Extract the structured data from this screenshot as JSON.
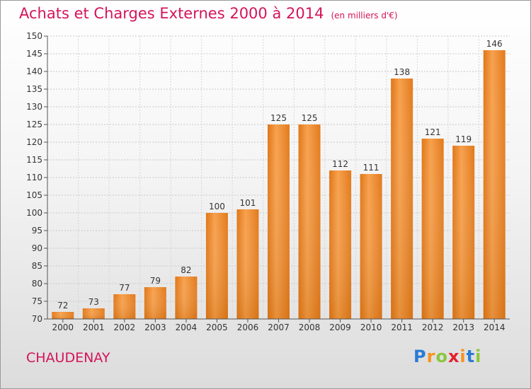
{
  "title": "Achats et Charges Externes 2000 à 2014",
  "subtitle": "(en milliers d'€)",
  "place": "CHAUDENAY",
  "logo": {
    "letters": [
      "P",
      "r",
      "o",
      "x",
      "i",
      "t",
      "i"
    ],
    "colors": [
      "#2b7bd3",
      "#f7931e",
      "#8cc63f",
      "#e5202e",
      "#f7931e",
      "#2b7bd3",
      "#8cc63f"
    ]
  },
  "chart_data": {
    "type": "bar",
    "categories": [
      "2000",
      "2001",
      "2002",
      "2003",
      "2004",
      "2005",
      "2006",
      "2007",
      "2008",
      "2009",
      "2010",
      "2011",
      "2012",
      "2013",
      "2014"
    ],
    "values": [
      72,
      73,
      77,
      79,
      82,
      100,
      101,
      125,
      125,
      112,
      111,
      138,
      121,
      119,
      146
    ],
    "ylim": [
      70,
      150
    ],
    "yticks": [
      70,
      75,
      80,
      85,
      90,
      95,
      100,
      105,
      110,
      115,
      120,
      125,
      130,
      135,
      140,
      145,
      150
    ],
    "grid": true,
    "bar_color": "#f0922e"
  }
}
